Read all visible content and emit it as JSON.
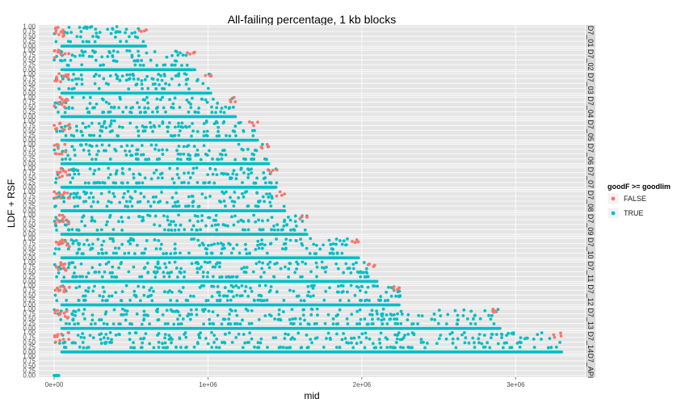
{
  "chart_data": {
    "type": "scatter",
    "title": "All-failing percentage,  1 kb blocks",
    "xlabel": "mid",
    "ylabel": "LDF + RSF",
    "xlim": [
      -100000,
      3450000
    ],
    "ylim": [
      0,
      1
    ],
    "x_ticks": [
      0,
      1000000,
      2000000,
      3000000
    ],
    "x_tick_labels": [
      "0e+00",
      "1e+06",
      "2e+06",
      "3e+06"
    ],
    "y_ticks": [
      0,
      0.25,
      0.5,
      0.75,
      1
    ],
    "y_tick_labels": [
      "0.00",
      "0.25",
      "0.50",
      "0.75",
      "1.00"
    ],
    "grid": true,
    "legend": {
      "title": "goodF >= goodlim",
      "placement": "right",
      "entries": [
        {
          "label": "FALSE",
          "color": "#F8766D"
        },
        {
          "label": "TRUE",
          "color": "#00BFC4"
        }
      ]
    },
    "panels": [
      {
        "label": "D7_01",
        "xmax": 600000
      },
      {
        "label": "D7_02",
        "xmax": 920000
      },
      {
        "label": "D7_03",
        "xmax": 1020000
      },
      {
        "label": "D7_04",
        "xmax": 1180000
      },
      {
        "label": "D7_05",
        "xmax": 1330000
      },
      {
        "label": "D7_06",
        "xmax": 1400000
      },
      {
        "label": "D7_07",
        "xmax": 1450000
      },
      {
        "label": "D7_08",
        "xmax": 1500000
      },
      {
        "label": "D7_09",
        "xmax": 1650000
      },
      {
        "label": "D7_10",
        "xmax": 1980000
      },
      {
        "label": "D7_11",
        "xmax": 2100000
      },
      {
        "label": "D7_12",
        "xmax": 2250000
      },
      {
        "label": "D7_13",
        "xmax": 2900000
      },
      {
        "label": "D7_14",
        "xmax": 3300000
      },
      {
        "label": "D7_API",
        "xmax": 40000
      }
    ]
  }
}
